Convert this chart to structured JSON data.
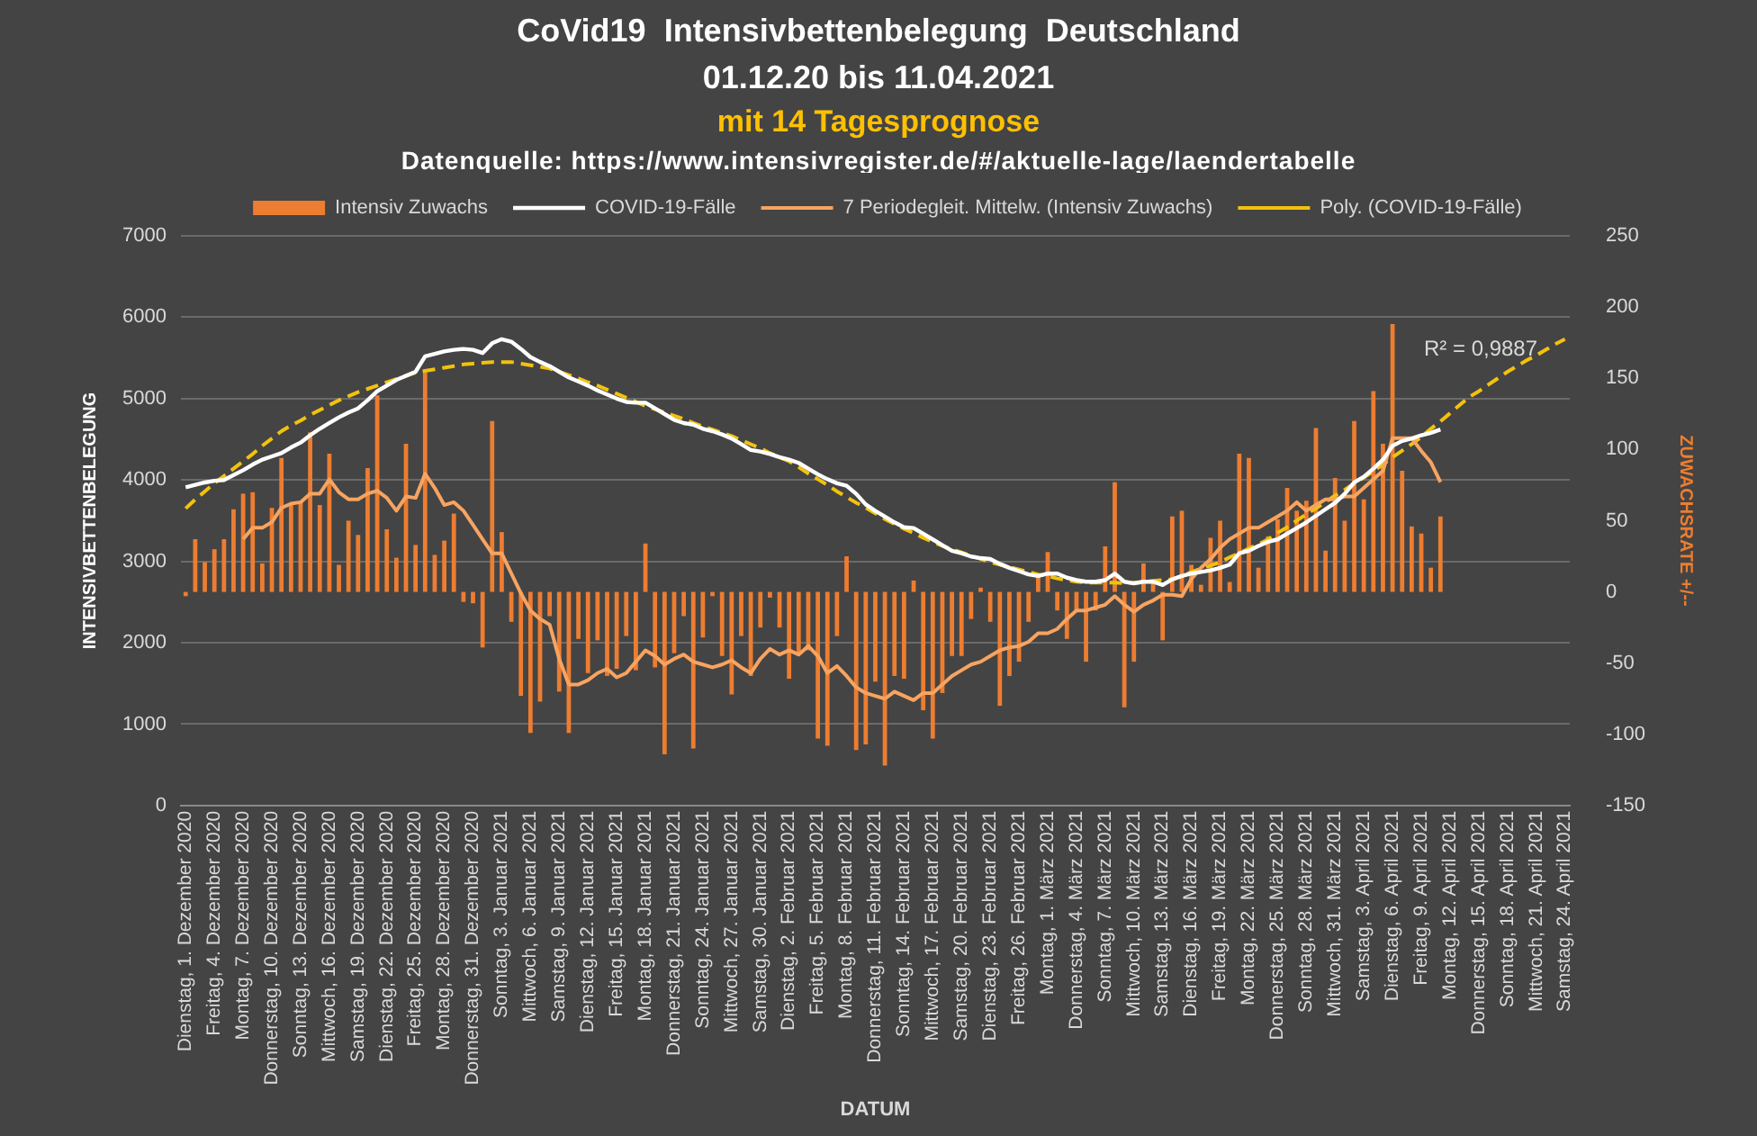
{
  "chart_data": {
    "type": "bar",
    "title": "CoVid19  Intensivbettenbelegung  Deutschland",
    "subtitle": "01.12.20 bis 11.04.2021",
    "annotations": [
      "mit 14 Tagesprognose",
      "Datenquelle: https://www.intensivregister.de/#/aktuelle-lage/laendertabelle",
      "R² = 0,9887"
    ],
    "xlabel": "DATUM",
    "ylabel": "INTENSIVBETTENBELEGUNG",
    "y2label": "ZUWACHSRATE +/--",
    "categories": [
      "Dienstag, 1. Dezember 2020",
      null,
      null,
      "Freitag, 4. Dezember 2020",
      null,
      null,
      "Montag, 7. Dezember 2020",
      null,
      null,
      "Donnerstag, 10. Dezember 2020",
      null,
      null,
      "Sonntag, 13. Dezember 2020",
      null,
      null,
      "Mittwoch, 16. Dezember 2020",
      null,
      null,
      "Samstag, 19. Dezember 2020",
      null,
      null,
      "Dienstag, 22. Dezember 2020",
      null,
      null,
      "Freitag, 25. Dezember 2020",
      null,
      null,
      "Montag, 28. Dezember 2020",
      null,
      null,
      "Donnerstag, 31. Dezember 2020",
      null,
      null,
      "Sonntag, 3. Januar 2021",
      null,
      null,
      "Mittwoch, 6. Januar 2021",
      null,
      null,
      "Samstag, 9. Januar 2021",
      null,
      null,
      "Dienstag, 12. Januar 2021",
      null,
      null,
      "Freitag, 15. Januar 2021",
      null,
      null,
      "Montag, 18. Januar 2021",
      null,
      null,
      "Donnerstag, 21. Januar 2021",
      null,
      null,
      "Sonntag, 24. Januar 2021",
      null,
      null,
      "Mittwoch, 27. Januar 2021",
      null,
      null,
      "Samstag, 30. Januar 2021",
      null,
      null,
      "Dienstag, 2. Februar 2021",
      null,
      null,
      "Freitag, 5. Februar 2021",
      null,
      null,
      "Montag, 8. Februar 2021",
      null,
      null,
      "Donnerstag, 11. Februar 2021",
      null,
      null,
      "Sonntag, 14. Februar 2021",
      null,
      null,
      "Mittwoch, 17. Februar 2021",
      null,
      null,
      "Samstag, 20. Februar 2021",
      null,
      null,
      "Dienstag, 23. Februar 2021",
      null,
      null,
      "Freitag, 26. Februar 2021",
      null,
      null,
      "Montag, 1. März 2021",
      null,
      null,
      "Donnerstag, 4. März 2021",
      null,
      null,
      "Sonntag, 7. März 2021",
      null,
      null,
      "Mittwoch, 10. März 2021",
      null,
      null,
      "Samstag, 13. März 2021",
      null,
      null,
      "Dienstag, 16. März 2021",
      null,
      null,
      "Freitag, 19. März 2021",
      null,
      null,
      "Montag, 22. März 2021",
      null,
      null,
      "Donnerstag, 25. März 2021",
      null,
      null,
      "Sonntag, 28. März 2021",
      null,
      null,
      "Mittwoch, 31. März 2021",
      null,
      null,
      "Samstag, 3. April 2021",
      null,
      null,
      "Dienstag, 6. April 2021",
      null,
      null,
      "Freitag, 9. April 2021",
      null,
      null,
      "Montag, 12. April 2021",
      null,
      null,
      "Donnerstag, 15. April 2021",
      null,
      null,
      "Sonntag, 18. April 2021",
      null,
      null,
      "Mittwoch, 21. April 2021",
      null,
      null,
      "Samstag, 24. April 2021"
    ],
    "series": [
      {
        "name": "Intensiv Zuwachs",
        "axis": "y2",
        "color": "#ed7d31",
        "values": [
          -3,
          37,
          21,
          30,
          37,
          58,
          69,
          70,
          20,
          59,
          94,
          61,
          63,
          112,
          61,
          97,
          19,
          50,
          40,
          87,
          138,
          44,
          24,
          104,
          33,
          154,
          26,
          36,
          55,
          -7,
          -8,
          -39,
          120,
          42,
          -21,
          -73,
          -99,
          -77,
          -17,
          -70,
          -99,
          -33,
          -57,
          -34,
          -59,
          -54,
          -31,
          -55,
          34,
          -53,
          -114,
          -43,
          -17,
          -110,
          -32,
          -3,
          -45,
          -72,
          -31,
          -59,
          -25,
          -4,
          -25,
          -61,
          -43,
          -41,
          -103,
          -108,
          -31,
          25,
          -111,
          -107,
          -63,
          -122,
          -59,
          -61,
          8,
          -83,
          -103,
          -71,
          -45,
          -45,
          -19,
          3,
          -21,
          -80,
          -59,
          -49,
          -21,
          13,
          28,
          -13,
          -33,
          -13,
          -49,
          -13,
          32,
          77,
          -81,
          -49,
          20,
          8,
          -34,
          53,
          57,
          19,
          5,
          38,
          50,
          7,
          97,
          94,
          17,
          39,
          51,
          73,
          57,
          64,
          115,
          29,
          80,
          50,
          120,
          65,
          141,
          104,
          188,
          85,
          46,
          41,
          17,
          53,
          null,
          null,
          null,
          null,
          null,
          null,
          null,
          null,
          null,
          null,
          null,
          null,
          null
        ]
      },
      {
        "name": "COVID-19-Fälle",
        "type": "line",
        "color": "#ffffff",
        "values": [
          3910,
          3940,
          3970,
          3990,
          4000,
          4060,
          4120,
          4190,
          4250,
          4290,
          4330,
          4400,
          4460,
          4550,
          4630,
          4700,
          4770,
          4830,
          4880,
          4980,
          5090,
          5160,
          5230,
          5280,
          5330,
          5520,
          5550,
          5580,
          5600,
          5610,
          5600,
          5560,
          5680,
          5730,
          5700,
          5610,
          5510,
          5450,
          5400,
          5330,
          5260,
          5210,
          5160,
          5100,
          5050,
          5000,
          4960,
          4950,
          4950,
          4880,
          4810,
          4740,
          4700,
          4680,
          4630,
          4600,
          4560,
          4510,
          4440,
          4370,
          4350,
          4320,
          4280,
          4250,
          4210,
          4140,
          4070,
          4010,
          3960,
          3930,
          3830,
          3700,
          3620,
          3550,
          3480,
          3420,
          3410,
          3340,
          3270,
          3200,
          3130,
          3100,
          3060,
          3040,
          3030,
          2970,
          2920,
          2880,
          2840,
          2820,
          2850,
          2850,
          2800,
          2770,
          2750,
          2750,
          2770,
          2850,
          2750,
          2730,
          2750,
          2750,
          2710,
          2780,
          2820,
          2850,
          2870,
          2890,
          2920,
          2960,
          3100,
          3130,
          3190,
          3240,
          3270,
          3340,
          3410,
          3480,
          3560,
          3640,
          3720,
          3830,
          3970,
          4040,
          4140,
          4250,
          4420,
          4480,
          4510,
          4550,
          4580,
          4620,
          null,
          null,
          null,
          null,
          null,
          null,
          null,
          null,
          null,
          null,
          null,
          null,
          null
        ]
      },
      {
        "name": "7 Periodegleit. Mittelw. (Intensiv Zuwachs)",
        "type": "line",
        "axis": "y2",
        "color": "#f7a461",
        "values": [
          null,
          null,
          null,
          null,
          null,
          null,
          37,
          45,
          45,
          49,
          59,
          62,
          63,
          69,
          69,
          79,
          70,
          65,
          65,
          69,
          71,
          66,
          57,
          67,
          66,
          83,
          73,
          61,
          63,
          57,
          47,
          37,
          27,
          27,
          13,
          -1,
          -13,
          -19,
          -23,
          -47,
          -65,
          -65,
          -62,
          -57,
          -54,
          -60,
          -57,
          -49,
          -41,
          -45,
          -51,
          -47,
          -44,
          -49,
          -51,
          -53,
          -51,
          -48,
          -53,
          -57,
          -47,
          -40,
          -44,
          -41,
          -44,
          -38,
          -45,
          -57,
          -52,
          -59,
          -67,
          -71,
          -73,
          -75,
          -70,
          -73,
          -76,
          -71,
          -71,
          -65,
          -59,
          -55,
          -51,
          -49,
          -45,
          -41,
          -39,
          -38,
          -35,
          -29,
          -29,
          -26,
          -19,
          -13,
          -13,
          -11,
          -9,
          -3,
          -9,
          -14,
          -9,
          -6,
          -2,
          -2,
          -3,
          9,
          17,
          23,
          31,
          37,
          41,
          45,
          45,
          49,
          53,
          57,
          63,
          57,
          61,
          65,
          65,
          67,
          67,
          73,
          79,
          85,
          108,
          108,
          108,
          99,
          91,
          77,
          null,
          null,
          null,
          null,
          null,
          null,
          null,
          null,
          null,
          null,
          null,
          null,
          null
        ]
      },
      {
        "name": "Poly. (COVID-19-Fälle)",
        "type": "line",
        "line_style": "dashed",
        "color": "#f2c20d",
        "values": [
          3650,
          3760,
          3860,
          3960,
          4050,
          4140,
          4230,
          4320,
          4420,
          4510,
          4600,
          4670,
          4730,
          4800,
          4860,
          4920,
          4980,
          5030,
          5080,
          5120,
          5160,
          5200,
          5240,
          5280,
          5320,
          5340,
          5360,
          5380,
          5400,
          5420,
          5430,
          5440,
          5450,
          5450,
          5450,
          5430,
          5410,
          5390,
          5370,
          5330,
          5290,
          5250,
          5200,
          5160,
          5110,
          5060,
          5010,
          4960,
          4910,
          4870,
          4830,
          4790,
          4750,
          4700,
          4660,
          4620,
          4580,
          4540,
          4490,
          4440,
          4390,
          4330,
          4280,
          4230,
          4160,
          4080,
          4010,
          3940,
          3860,
          3790,
          3720,
          3660,
          3590,
          3520,
          3460,
          3400,
          3350,
          3290,
          3240,
          3190,
          3150,
          3110,
          3070,
          3030,
          2990,
          2960,
          2930,
          2900,
          2870,
          2840,
          2820,
          2790,
          2770,
          2750,
          2740,
          2740,
          2740,
          2740,
          2730,
          2740,
          2750,
          2760,
          2770,
          2780,
          2820,
          2870,
          2910,
          2950,
          2990,
          3050,
          3100,
          3160,
          3210,
          3270,
          3350,
          3420,
          3500,
          3580,
          3650,
          3730,
          3810,
          3880,
          3960,
          4030,
          4110,
          4190,
          4280,
          4360,
          4440,
          4530,
          4630,
          4720,
          4820,
          4920,
          5020,
          5090,
          5170,
          5250,
          5330,
          5400,
          5470,
          5530,
          5600,
          5670,
          5730
        ]
      }
    ],
    "ylim": [
      0,
      7000
    ],
    "yticks": [
      0,
      1000,
      2000,
      3000,
      4000,
      5000,
      6000,
      7000
    ],
    "y2lim": [
      -150,
      250
    ],
    "y2ticks": [
      -150,
      -100,
      -50,
      0,
      50,
      100,
      150,
      200,
      250
    ],
    "grid": "y",
    "legend": "top",
    "marker": "none"
  }
}
